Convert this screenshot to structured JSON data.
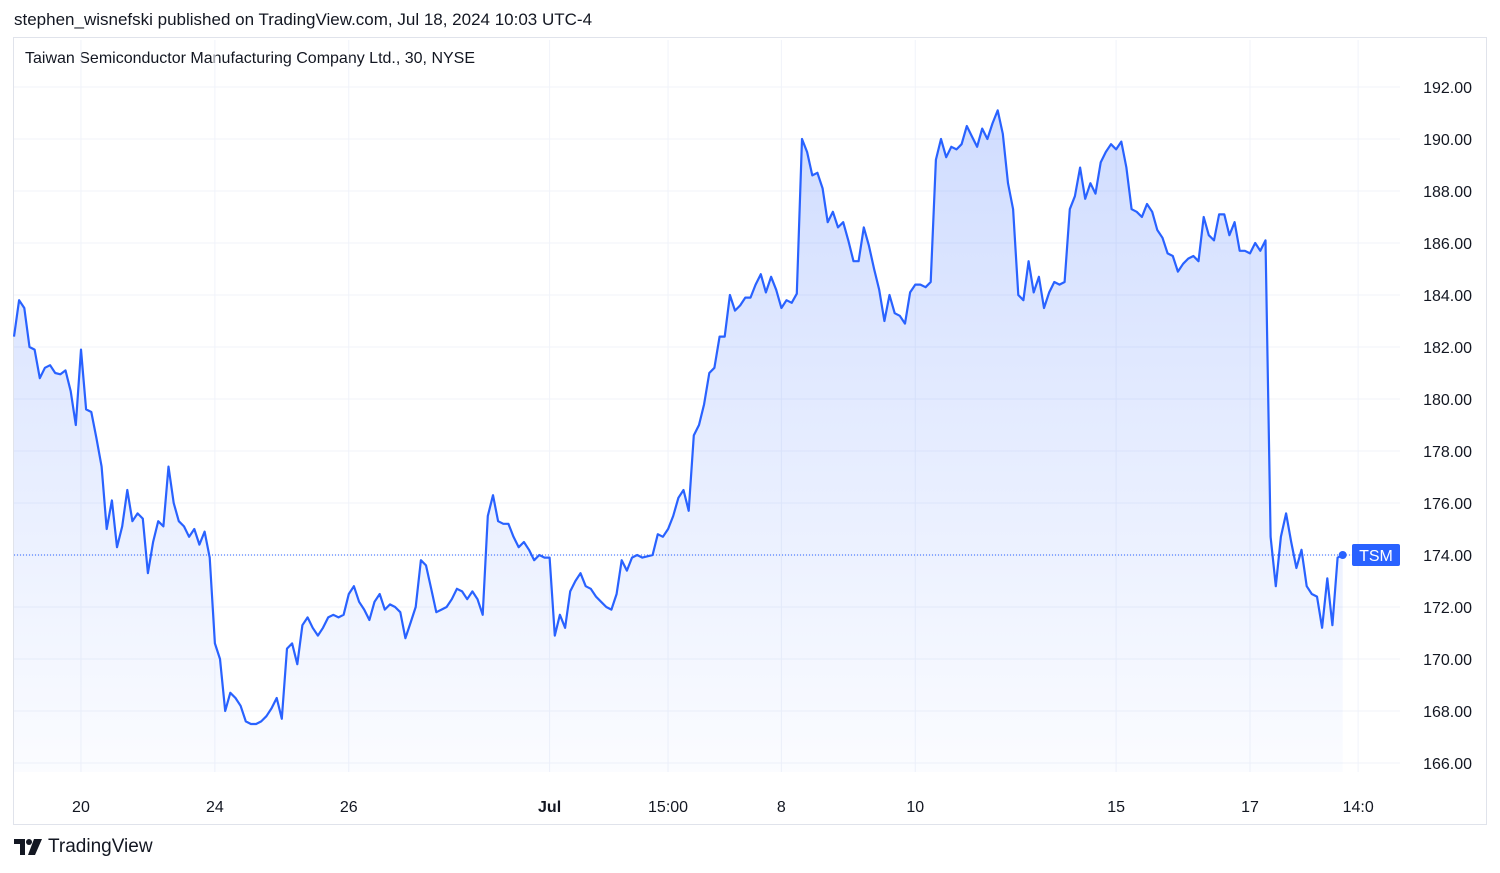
{
  "header": {
    "published": "stephen_wisnefski published on TradingView.com, Jul 18, 2024 10:03 UTC-4"
  },
  "footer": {
    "brand": "TradingView"
  },
  "colors": {
    "line": "#2962ff",
    "fill_top": "rgba(41,98,255,0.22)",
    "fill_bottom": "rgba(41,98,255,0.02)",
    "label_bg": "#2962ff",
    "grid": "#f0f3fa",
    "axis_text": "#131722"
  },
  "chart_data": {
    "type": "area",
    "title": "Taiwan Semiconductor Manufacturing Company Ltd., 30, NYSE",
    "series": [
      {
        "name": "TSM",
        "values": [
          182.4,
          183.8,
          183.5,
          182.0,
          181.9,
          180.8,
          181.2,
          181.3,
          181.0,
          180.95,
          181.1,
          180.3,
          179.0,
          181.9,
          179.6,
          179.5,
          178.5,
          177.4,
          175.0,
          176.1,
          174.3,
          175.1,
          176.5,
          175.3,
          175.6,
          175.4,
          173.3,
          174.5,
          175.3,
          175.1,
          177.4,
          176.0,
          175.3,
          175.1,
          174.7,
          175.0,
          174.4,
          174.9,
          173.9,
          170.6,
          170.0,
          168.0,
          168.7,
          168.5,
          168.2,
          167.6,
          167.5,
          167.5,
          167.6,
          167.8,
          168.1,
          168.5,
          167.7,
          170.4,
          170.6,
          169.8,
          171.3,
          171.6,
          171.2,
          170.9,
          171.2,
          171.6,
          171.7,
          171.6,
          171.7,
          172.5,
          172.8,
          172.2,
          171.9,
          171.5,
          172.2,
          172.5,
          171.9,
          172.1,
          172.0,
          171.8,
          170.8,
          171.4,
          172.0,
          173.8,
          173.6,
          172.7,
          171.8,
          171.9,
          172.0,
          172.3,
          172.7,
          172.6,
          172.3,
          172.6,
          172.3,
          171.7,
          175.5,
          176.3,
          175.3,
          175.2,
          175.2,
          174.7,
          174.3,
          174.5,
          174.2,
          173.8,
          174.0,
          173.9,
          173.9,
          170.9,
          171.7,
          171.2,
          172.6,
          173.0,
          173.3,
          172.8,
          172.7,
          172.4,
          172.2,
          172.0,
          171.9,
          172.5,
          173.8,
          173.4,
          173.9,
          174.0,
          173.9,
          173.95,
          174.0,
          174.8,
          174.7,
          175.0,
          175.5,
          176.2,
          176.5,
          175.7,
          178.6,
          179.0,
          179.8,
          181.0,
          181.2,
          182.4,
          182.4,
          184.0,
          183.4,
          183.6,
          183.9,
          183.9,
          184.4,
          184.8,
          184.1,
          184.7,
          184.2,
          183.5,
          183.8,
          183.7,
          184.05,
          190.0,
          189.5,
          188.6,
          188.7,
          188.1,
          186.8,
          187.2,
          186.6,
          186.8,
          186.1,
          185.3,
          185.3,
          186.6,
          185.9,
          185.0,
          184.2,
          183.0,
          184.0,
          183.3,
          183.2,
          182.9,
          184.1,
          184.4,
          184.4,
          184.3,
          184.5,
          189.2,
          190.0,
          189.3,
          189.7,
          189.6,
          189.8,
          190.5,
          190.1,
          189.7,
          190.4,
          190.0,
          190.6,
          191.1,
          190.2,
          188.3,
          187.3,
          184.0,
          183.8,
          185.3,
          184.1,
          184.7,
          183.5,
          184.1,
          184.5,
          184.4,
          184.5,
          187.3,
          187.8,
          188.9,
          187.7,
          188.3,
          187.9,
          189.1,
          189.5,
          189.8,
          189.6,
          189.9,
          188.9,
          187.3,
          187.2,
          187.0,
          187.5,
          187.2,
          186.5,
          186.2,
          185.6,
          185.5,
          184.9,
          185.2,
          185.4,
          185.5,
          185.3,
          187.0,
          186.3,
          186.1,
          187.1,
          187.1,
          186.3,
          186.8,
          185.7,
          185.7,
          185.6,
          186.0,
          185.7,
          186.1,
          174.7,
          172.8,
          174.7,
          175.6,
          174.5,
          173.5,
          174.2,
          172.8,
          172.5,
          172.4,
          171.2,
          173.1,
          171.3,
          173.9,
          174.0
        ]
      }
    ],
    "ylim": [
      165.0,
      193.5
    ],
    "y_ticks": [
      "192.00",
      "190.00",
      "188.00",
      "186.00",
      "184.00",
      "182.00",
      "180.00",
      "178.00",
      "176.00",
      "174.00",
      "172.00",
      "170.00",
      "168.00",
      "166.00"
    ],
    "x_ticks": [
      {
        "label": "20",
        "index": 13,
        "bold": false
      },
      {
        "label": "24",
        "index": 39,
        "bold": false
      },
      {
        "label": "26",
        "index": 65,
        "bold": false
      },
      {
        "label": "Jul",
        "index": 104,
        "bold": true
      },
      {
        "label": "15:00",
        "index": 127,
        "bold": false
      },
      {
        "label": "8",
        "index": 149,
        "bold": false
      },
      {
        "label": "10",
        "index": 175,
        "bold": false
      },
      {
        "label": "15",
        "index": 214,
        "bold": false
      },
      {
        "label": "17",
        "index": 240,
        "bold": false
      },
      {
        "label": "14:0",
        "index": 261,
        "bold": false
      }
    ],
    "last_label": {
      "text": "TSM",
      "value": 174.0
    },
    "grid": true
  }
}
